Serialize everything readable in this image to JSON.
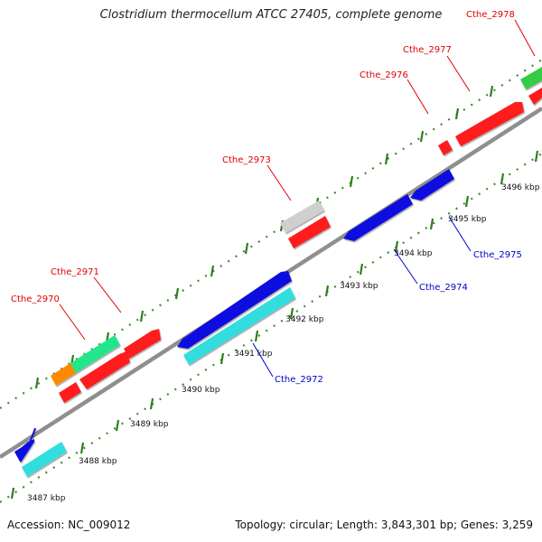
{
  "title": "Clostridium thermocellum ATCC 27405, complete genome",
  "footer": {
    "accession": "Accession: NC_009012",
    "summary": "Topology: circular; Length: 3,843,301 bp; Genes: 3,259"
  },
  "colors": {
    "backbone": "#9a9a9a",
    "tick": "#2e7d1f",
    "forward_label": "#e00000",
    "reverse_label": "#0000cc",
    "red": "#ff1a1a",
    "green": "#33cc44",
    "orange": "#ff8800",
    "spring_green": "#22e68a",
    "gray": "#cfcfcf",
    "blue": "#1010e0",
    "cyan": "#33dddd"
  },
  "scale_labels": [
    "3487 kbp",
    "3488 kbp",
    "3489 kbp",
    "3490 kbp",
    "3491 kbp",
    "3492 kbp",
    "3493 kbp",
    "3494 kbp",
    "3495 kbp",
    "3496 kbp"
  ],
  "gene_labels": {
    "forward": [
      "Cthe_2970",
      "Cthe_2971",
      "Cthe_2973",
      "Cthe_2976",
      "Cthe_2977",
      "Cthe_2978"
    ],
    "reverse": [
      "Cthe_2972",
      "Cthe_2974",
      "Cthe_2975"
    ]
  }
}
